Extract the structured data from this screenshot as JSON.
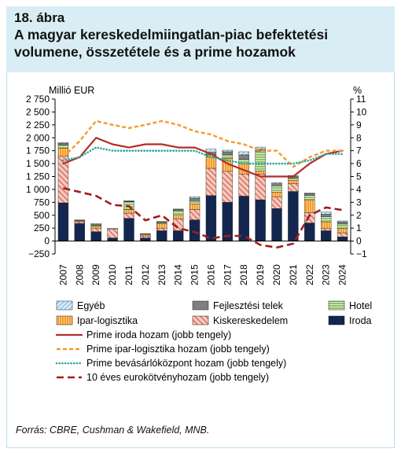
{
  "header": {
    "figure_number": "18. ábra",
    "title_line1": "A magyar kereskedelmiingatlan-piac befektetési",
    "title_line2": "volumene, összetétele és a prime hozamok"
  },
  "source": "Forrás: CBRE, Cushman & Wakefield, MNB.",
  "colors": {
    "egyeb": "#c7e0f2",
    "fejlesztesi": "#7f7f7f",
    "hotel": "#92c26c",
    "ipar": "#f59a2c",
    "kisker": "#f0b5a8",
    "iroda": "#13264f",
    "prime_iroda": "#b52b2b",
    "prime_ipar": "#f59a2c",
    "prime_bevasarlo": "#2aa89a",
    "euro10": "#a11d1d",
    "header_bg": "#d9edf5"
  },
  "chart_data": {
    "type": "bar",
    "stacked": true,
    "left_axis_label": "Millió EUR",
    "right_axis_label": "%",
    "ylim": [
      -250,
      2750
    ],
    "y2lim": [
      -1,
      11
    ],
    "yticks": [
      "2 750",
      "2 500",
      "2 250",
      "2 000",
      "1 750",
      "1 500",
      "1 250",
      "1 000",
      "750",
      "500",
      "250",
      "0",
      "−250"
    ],
    "y2ticks": [
      "11",
      "10",
      "9",
      "8",
      "7",
      "6",
      "5",
      "4",
      "3",
      "2",
      "1",
      "0",
      "−1"
    ],
    "categories": [
      "2007",
      "2008",
      "2009",
      "2010",
      "2011",
      "2012",
      "2013",
      "2014",
      "2015",
      "2016",
      "2017",
      "2018",
      "2019",
      "2020",
      "2021",
      "2022",
      "2023",
      "2024"
    ],
    "bar_series": [
      {
        "key": "iroda",
        "name": "Iroda",
        "values": [
          740,
          340,
          180,
          60,
          440,
          60,
          200,
          200,
          410,
          880,
          750,
          870,
          800,
          630,
          960,
          350,
          200,
          80
        ]
      },
      {
        "key": "kisker",
        "name": "Kiskereskedelem",
        "values": [
          900,
          30,
          70,
          170,
          100,
          40,
          50,
          230,
          200,
          530,
          600,
          430,
          500,
          220,
          150,
          200,
          40,
          80
        ]
      },
      {
        "key": "ipar",
        "name": "Ipar-logisztika",
        "values": [
          160,
          20,
          40,
          0,
          70,
          30,
          90,
          70,
          110,
          220,
          250,
          200,
          60,
          100,
          70,
          250,
          130,
          80
        ]
      },
      {
        "key": "hotel",
        "name": "Hotel",
        "values": [
          60,
          0,
          20,
          0,
          150,
          10,
          20,
          90,
          60,
          40,
          70,
          80,
          380,
          120,
          40,
          80,
          100,
          90
        ]
      },
      {
        "key": "fejlesztesi",
        "name": "Fejlesztési telek",
        "values": [
          30,
          10,
          10,
          0,
          10,
          0,
          10,
          20,
          50,
          50,
          60,
          90,
          40,
          40,
          30,
          40,
          50,
          40
        ]
      },
      {
        "key": "egyeb",
        "name": "Egyéb",
        "values": [
          20,
          10,
          20,
          20,
          10,
          5,
          10,
          10,
          30,
          60,
          30,
          60,
          40,
          20,
          20,
          10,
          40,
          20
        ]
      }
    ],
    "line_series": [
      {
        "key": "prime_iroda",
        "name": "Prime iroda hozam (jobb tengely)",
        "style": "solid",
        "values": [
          6.0,
          6.5,
          8.0,
          7.5,
          7.25,
          7.5,
          7.5,
          7.25,
          7.25,
          6.75,
          6.0,
          5.5,
          5.0,
          5.0,
          5.0,
          6.0,
          6.75,
          7.0
        ]
      },
      {
        "key": "prime_ipar",
        "name": "Prime ipar-logisztika hozam (jobb tengely)",
        "style": "dashed",
        "values": [
          6.5,
          7.75,
          9.3,
          9.0,
          8.75,
          9.0,
          9.3,
          9.0,
          8.5,
          8.25,
          7.75,
          7.5,
          7.0,
          7.0,
          5.75,
          6.5,
          7.0,
          7.0
        ]
      },
      {
        "key": "prime_bevasarlo",
        "name": "Prime bevásárlóközpont hozam (jobb tengely)",
        "style": "dotted",
        "values": [
          6.25,
          6.5,
          7.25,
          7.0,
          7.0,
          7.0,
          7.0,
          7.0,
          7.0,
          6.5,
          6.25,
          6.0,
          6.0,
          6.0,
          6.0,
          6.25,
          6.75,
          6.75
        ]
      },
      {
        "key": "euro10",
        "name": "10 éves eurokötvényhozam (jobb tengely)",
        "style": "longdash",
        "values": [
          4.1,
          3.8,
          3.5,
          2.8,
          2.7,
          1.6,
          2.0,
          1.0,
          0.7,
          0.2,
          0.4,
          0.4,
          -0.3,
          -0.5,
          -0.2,
          2.0,
          2.6,
          2.4
        ]
      }
    ],
    "legend": {
      "placement": "bottom",
      "bar_rows": [
        [
          "egyeb",
          "fejlesztesi",
          "hotel"
        ],
        [
          "ipar",
          "kisker",
          "iroda"
        ]
      ],
      "line_order": [
        "prime_iroda",
        "prime_ipar",
        "prime_bevasarlo",
        "euro10"
      ]
    }
  }
}
